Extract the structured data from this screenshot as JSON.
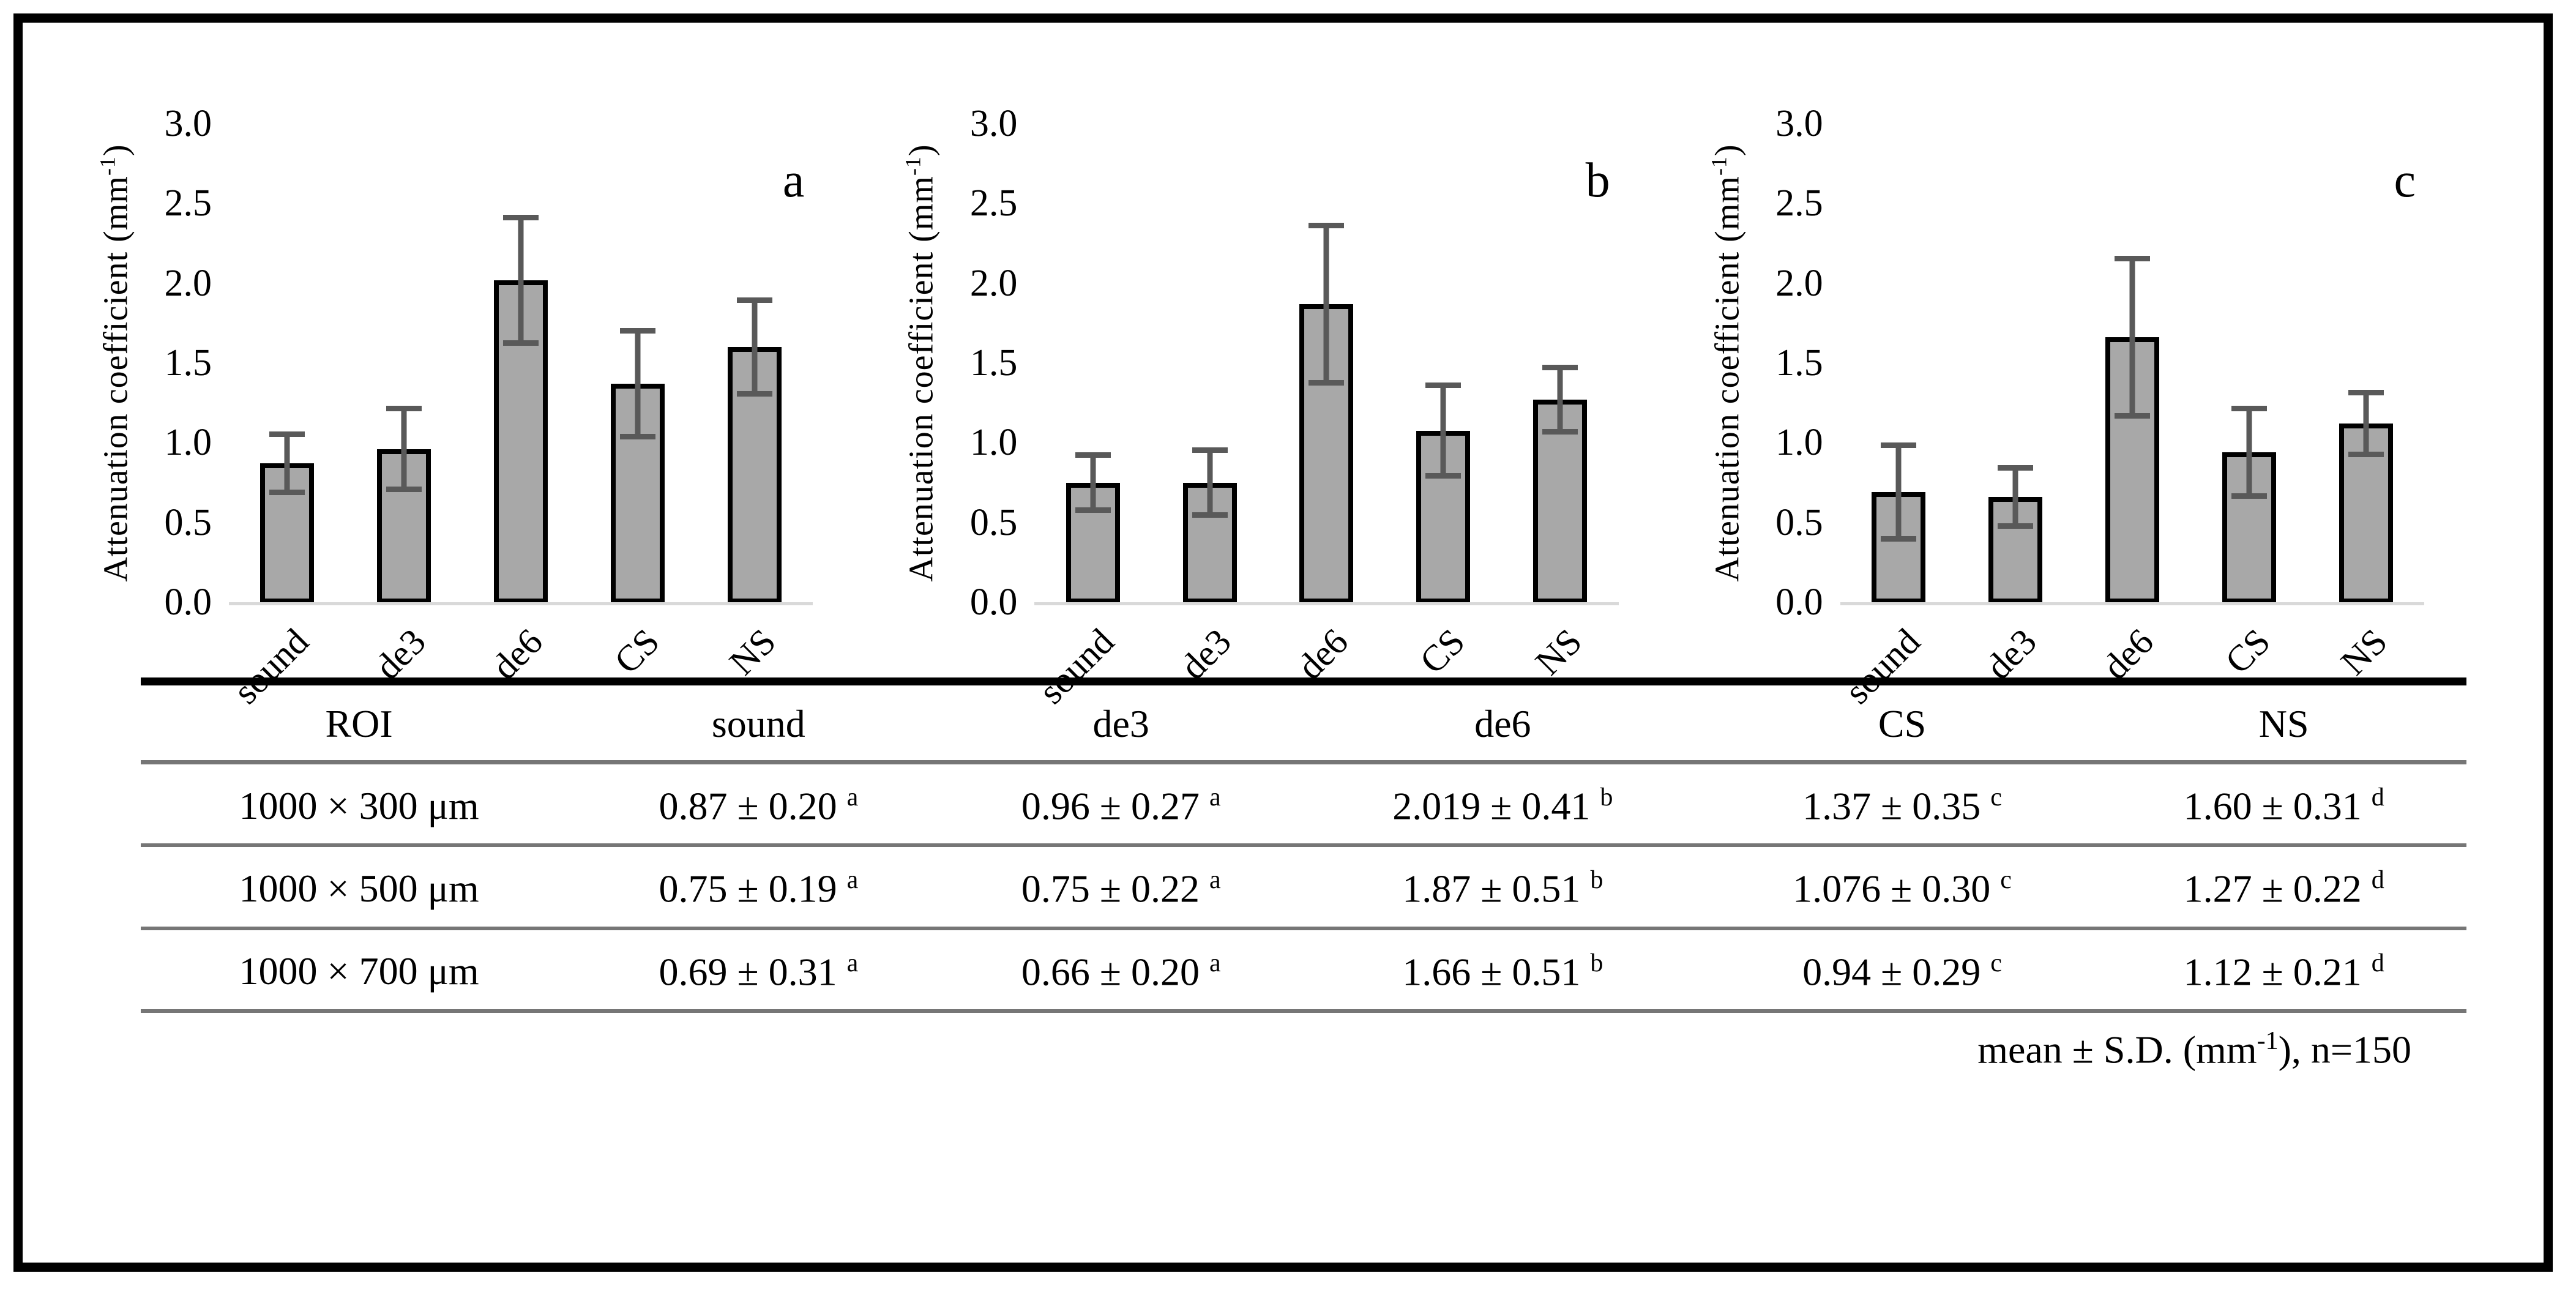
{
  "figure": {
    "y_axis_title": {
      "pre": "Attenuation coefficient (mm",
      "sup": "-1",
      "post": ")"
    },
    "y_axis_title_text": "Attenuation coefficient (mm⁻¹)",
    "y_tick_labels": [
      "3.0",
      "2.5",
      "2.0",
      "1.5",
      "1.0",
      "0.5",
      "0.0"
    ],
    "categories": [
      "sound",
      "de3",
      "de6",
      "CS",
      "NS"
    ]
  },
  "chart_data": [
    {
      "type": "bar",
      "panel_label": "a",
      "categories": [
        "sound",
        "de3",
        "de6",
        "CS",
        "NS"
      ],
      "values": [
        0.87,
        0.96,
        2.019,
        1.37,
        1.6
      ],
      "errors": [
        0.2,
        0.27,
        0.41,
        0.35,
        0.31
      ],
      "ylabel": "Attenuation coefficient (mm⁻¹)",
      "ylim": [
        0,
        3.0
      ],
      "ytick_step": 0.5,
      "grid": false,
      "legend": "none"
    },
    {
      "type": "bar",
      "panel_label": "b",
      "categories": [
        "sound",
        "de3",
        "de6",
        "CS",
        "NS"
      ],
      "values": [
        0.75,
        0.75,
        1.87,
        1.076,
        1.27
      ],
      "errors": [
        0.19,
        0.22,
        0.51,
        0.3,
        0.22
      ],
      "ylabel": "Attenuation coefficient (mm⁻¹)",
      "ylim": [
        0,
        3.0
      ],
      "ytick_step": 0.5,
      "grid": false,
      "legend": "none"
    },
    {
      "type": "bar",
      "panel_label": "c",
      "categories": [
        "sound",
        "de3",
        "de6",
        "CS",
        "NS"
      ],
      "values": [
        0.69,
        0.66,
        1.66,
        0.94,
        1.12
      ],
      "errors": [
        0.31,
        0.2,
        0.51,
        0.29,
        0.21
      ],
      "ylabel": "Attenuation coefficient (mm⁻¹)",
      "ylim": [
        0,
        3.0
      ],
      "ytick_step": 0.5,
      "grid": false,
      "legend": "none"
    }
  ],
  "table": {
    "headers": [
      "ROI",
      "sound",
      "de3",
      "de6",
      "CS",
      "NS"
    ],
    "rows": [
      {
        "roi": "1000 × 300 μm",
        "cells": [
          {
            "value": "0.87 ± 0.20",
            "sup": "a"
          },
          {
            "value": "0.96 ± 0.27",
            "sup": "a"
          },
          {
            "value": "2.019 ± 0.41",
            "sup": "b"
          },
          {
            "value": "1.37 ± 0.35",
            "sup": "c"
          },
          {
            "value": "1.60 ± 0.31",
            "sup": "d"
          }
        ]
      },
      {
        "roi": "1000 × 500 μm",
        "cells": [
          {
            "value": "0.75 ± 0.19",
            "sup": "a"
          },
          {
            "value": "0.75 ± 0.22",
            "sup": "a"
          },
          {
            "value": "1.87 ± 0.51",
            "sup": "b"
          },
          {
            "value": "1.076 ± 0.30",
            "sup": "c"
          },
          {
            "value": "1.27 ± 0.22",
            "sup": "d"
          }
        ]
      },
      {
        "roi": "1000 × 700 μm",
        "cells": [
          {
            "value": "0.69 ± 0.31",
            "sup": "a"
          },
          {
            "value": "0.66 ± 0.20",
            "sup": "a"
          },
          {
            "value": "1.66 ± 0.51",
            "sup": "b"
          },
          {
            "value": "0.94 ± 0.29",
            "sup": "c"
          },
          {
            "value": "1.12 ± 0.21",
            "sup": "d"
          }
        ]
      }
    ],
    "footnote": {
      "pre": "mean ± S.D. (mm",
      "sup": "-1",
      "post": "), n=150"
    }
  },
  "colors": {
    "bar_fill": "#a8a8a8",
    "bar_border": "#000000",
    "error_bar": "#595959",
    "axis_line": "#d9d9d9",
    "table_rule": "#767676",
    "frame": "#000000"
  }
}
